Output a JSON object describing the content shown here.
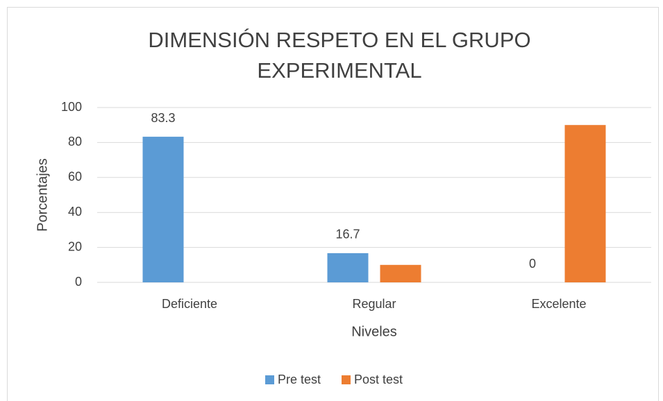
{
  "chart_data": {
    "type": "bar",
    "title": [
      "DIMENSIÓN RESPETO EN EL GRUPO",
      "EXPERIMENTAL"
    ],
    "x_label": "Niveles",
    "y_label": "Porcentajes",
    "categories": [
      "Deficiente",
      "Regular",
      "Excelente"
    ],
    "series": [
      {
        "name": "Pre test",
        "color": "#5b9bd5",
        "values": [
          83.3,
          16.7,
          0
        ],
        "data_labels": true
      },
      {
        "name": "Post test",
        "color": "#ed7d31",
        "values": [
          0,
          10,
          90
        ],
        "data_labels": false
      }
    ],
    "ylim": [
      0,
      100
    ],
    "yticks": [
      0,
      20,
      40,
      60,
      80,
      100
    ],
    "grid": true,
    "legend": "bottom"
  }
}
